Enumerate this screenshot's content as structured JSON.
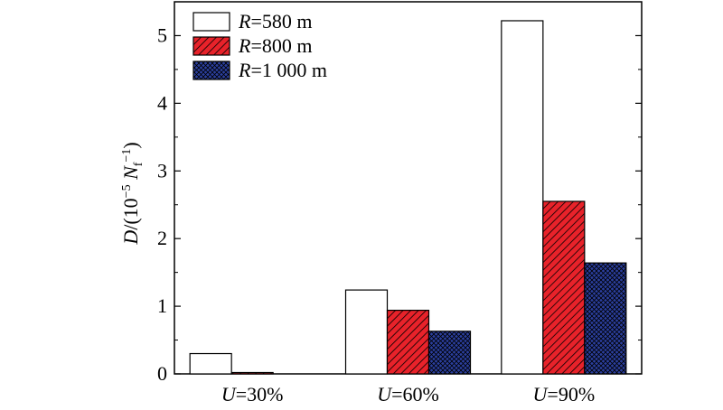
{
  "chart_data": {
    "type": "bar",
    "categories": [
      "U=30%",
      "U=60%",
      "U=90%"
    ],
    "category_parts": [
      {
        "var": "U",
        "rest": "=30%"
      },
      {
        "var": "U",
        "rest": "=60%"
      },
      {
        "var": "U",
        "rest": "=90%"
      }
    ],
    "series": [
      {
        "name": "R=580 m",
        "var": "R",
        "rest": "=580 m",
        "values": [
          0.3,
          1.24,
          5.22
        ],
        "fill": "#ffffff",
        "pattern": "none"
      },
      {
        "name": "R=800 m",
        "var": "R",
        "rest": "=800 m",
        "values": [
          0.02,
          0.94,
          2.55
        ],
        "fill": "#e8222a",
        "pattern": "diagonal-hatch"
      },
      {
        "name": "R=1 000 m",
        "var": "R",
        "rest": "=1 000 m",
        "values": [
          0.0,
          0.63,
          1.64
        ],
        "fill": "#2b3f9e",
        "pattern": "crosshatch"
      }
    ],
    "ylabel": "D/(10−5 Nf−1)",
    "ylabel_parts": {
      "var": "D",
      "open": "/(10",
      "exp": "−5",
      "space": " ",
      "var2": "N",
      "sub": "f",
      "sup": "−1",
      "close": ")"
    },
    "yticks": [
      0,
      1,
      2,
      3,
      4,
      5
    ],
    "ylim": [
      0,
      5.5
    ],
    "legend_position": "top-left",
    "grid": false,
    "colors": {
      "red": "#e8222a",
      "blue": "#2b3f9e",
      "white": "#ffffff",
      "axis": "#000000"
    }
  }
}
